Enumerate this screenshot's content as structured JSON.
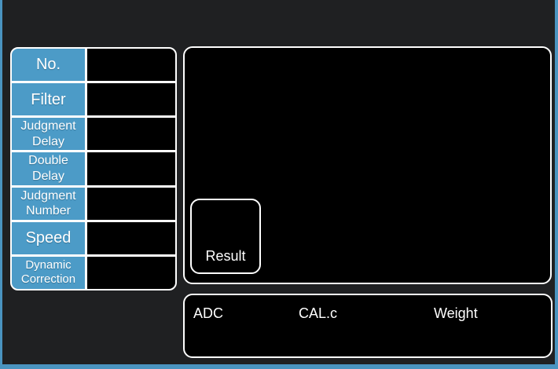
{
  "colors": {
    "frame_blue": "#4a94c0",
    "accent_blue": "#4c9bc7",
    "screen_bg": "#1f2022",
    "panel_bg": "#000000",
    "grid_white": "#ffffff",
    "text_white": "#ffffff"
  },
  "param_table": {
    "rows": [
      {
        "label": "No.",
        "value": ""
      },
      {
        "label": "Filter",
        "value": ""
      },
      {
        "label": "Judgment Delay",
        "value": ""
      },
      {
        "label": "Double Delay",
        "value": ""
      },
      {
        "label": "Judgment Number",
        "value": ""
      },
      {
        "label": "Speed",
        "value": ""
      },
      {
        "label": "Dynamic Correction",
        "value": ""
      }
    ]
  },
  "main_panel": {
    "result_box": {
      "label": "Result"
    }
  },
  "status_panel": {
    "fields": [
      {
        "label": "ADC",
        "value": ""
      },
      {
        "label": "CAL.c",
        "value": ""
      },
      {
        "label": "Weight",
        "value": ""
      }
    ]
  }
}
